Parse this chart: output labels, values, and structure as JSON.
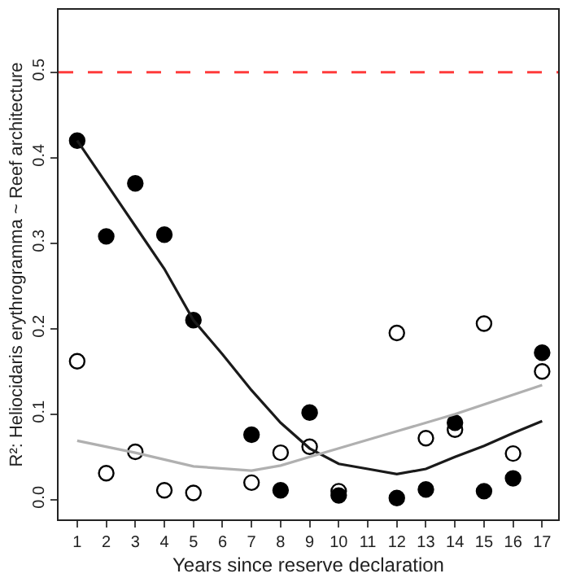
{
  "chart_data": {
    "type": "scatter",
    "xlabel": "Years since reserve declaration",
    "ylabel": "R²: Heliocidaris erythrogramma ~ Reef architecture",
    "xlim": [
      0.36,
      17.55
    ],
    "xticks": [
      1,
      2,
      3,
      4,
      5,
      6,
      7,
      8,
      9,
      10,
      11,
      12,
      13,
      14,
      15,
      16,
      17
    ],
    "ylim": [
      -0.023,
      0.573
    ],
    "yticks": [
      {
        "value": 0,
        "label": "0.0"
      },
      0.1,
      0.2,
      0.3,
      0.4,
      0.5
    ],
    "grid": false,
    "marker": "circle",
    "series": [
      {
        "color": "#000000",
        "x": [
          1,
          2,
          3,
          4,
          5,
          7,
          8,
          9,
          10,
          12,
          13,
          14,
          15,
          16,
          17
        ],
        "values": [
          0.42,
          0.308,
          0.37,
          0.31,
          0.21,
          0.076,
          0.011,
          0.102,
          0.005,
          0.002,
          0.012,
          0.09,
          0.01,
          0.025,
          0.172
        ]
      },
      {
        "color": "#000000",
        "marker": "circle-open",
        "x": [
          1,
          2,
          3,
          4,
          5,
          7,
          8,
          9,
          10,
          12,
          13,
          14,
          15,
          16,
          17
        ],
        "values": [
          0.162,
          0.031,
          0.056,
          0.011,
          0.008,
          0.02,
          0.055,
          0.062,
          0.01,
          0.195,
          0.072,
          0.082,
          0.206,
          0.054,
          0.15
        ]
      },
      {
        "type": "line",
        "marker": "none",
        "color": "#1a1a1a",
        "x": [
          1,
          2,
          3,
          4,
          5,
          6,
          7,
          8,
          9,
          10,
          11,
          12,
          13,
          14,
          15,
          16,
          17
        ],
        "values": [
          0.42,
          0.37,
          0.32,
          0.27,
          0.21,
          0.17,
          0.128,
          0.09,
          0.06,
          0.042,
          0.036,
          0.03,
          0.036,
          0.05,
          0.063,
          0.078,
          0.092
        ]
      },
      {
        "type": "line",
        "marker": "none",
        "color": "#b0b0b0",
        "x": [
          1,
          3,
          5,
          7,
          8,
          9,
          10,
          12,
          14,
          17
        ],
        "values": [
          0.069,
          0.055,
          0.039,
          0.034,
          0.04,
          0.05,
          0.06,
          0.08,
          0.1,
          0.134
        ]
      }
    ],
    "ref_lines": [
      {
        "axis": "y",
        "value": 0.5,
        "color": "#ff3b3b",
        "line_style": "dashed"
      }
    ]
  }
}
